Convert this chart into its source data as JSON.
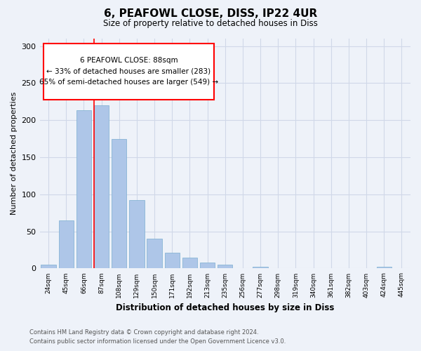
{
  "title": "6, PEAFOWL CLOSE, DISS, IP22 4UR",
  "subtitle": "Size of property relative to detached houses in Diss",
  "xlabel": "Distribution of detached houses by size in Diss",
  "ylabel": "Number of detached properties",
  "footnote1": "Contains HM Land Registry data © Crown copyright and database right 2024.",
  "footnote2": "Contains public sector information licensed under the Open Government Licence v3.0.",
  "categories": [
    "24sqm",
    "45sqm",
    "66sqm",
    "87sqm",
    "108sqm",
    "129sqm",
    "150sqm",
    "171sqm",
    "192sqm",
    "213sqm",
    "235sqm",
    "256sqm",
    "277sqm",
    "298sqm",
    "319sqm",
    "340sqm",
    "361sqm",
    "382sqm",
    "403sqm",
    "424sqm",
    "445sqm"
  ],
  "values": [
    5,
    65,
    213,
    220,
    175,
    92,
    40,
    21,
    15,
    8,
    5,
    0,
    2,
    0,
    0,
    0,
    0,
    0,
    0,
    2,
    0
  ],
  "bar_color": "#aec6e8",
  "bar_edge_color": "#7aaed0",
  "grid_color": "#d0d8e8",
  "background_color": "#eef2f9",
  "annotation_box_text": "6 PEAFOWL CLOSE: 88sqm\n← 33% of detached houses are smaller (283)\n65% of semi-detached houses are larger (549) →",
  "red_line_bar_index": 3,
  "ylim": [
    0,
    310
  ],
  "yticks": [
    0,
    50,
    100,
    150,
    200,
    250,
    300
  ]
}
